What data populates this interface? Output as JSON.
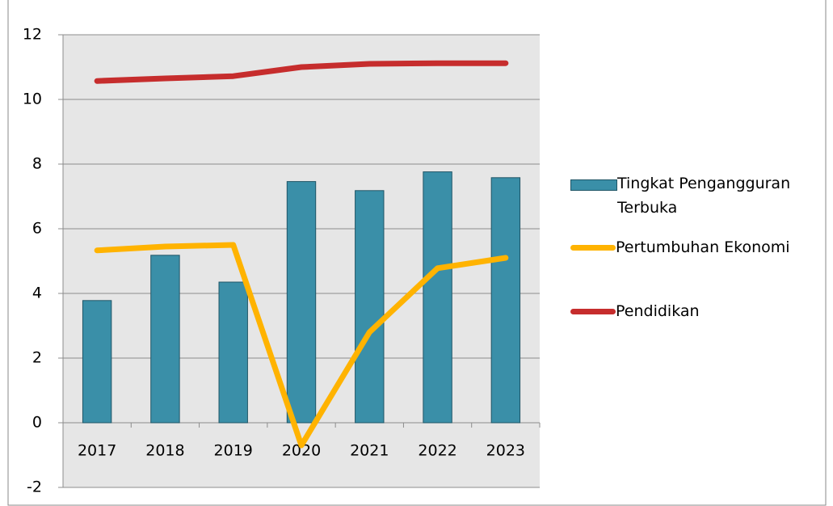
{
  "chart_data": {
    "type": "bar",
    "categories": [
      "2017",
      "2018",
      "2019",
      "2020",
      "2021",
      "2022",
      "2023"
    ],
    "series": [
      {
        "name": "Tingkat Pengangguran Terbuka",
        "type": "bar",
        "color": "#3a8fa8",
        "values": [
          3.78,
          5.18,
          4.35,
          7.46,
          7.18,
          7.76,
          7.58
        ]
      },
      {
        "name": "Pertumbuhan Ekonomi",
        "type": "line",
        "color": "#ffb300",
        "values": [
          5.33,
          5.45,
          5.5,
          -0.7,
          2.8,
          4.78,
          5.1
        ]
      },
      {
        "name": "Pendidikan",
        "type": "line",
        "color": "#c62d2d",
        "values": [
          10.57,
          10.65,
          10.72,
          11.0,
          11.1,
          11.12,
          11.12
        ]
      }
    ],
    "ylim": [
      -2,
      12
    ],
    "yticks": [
      -2,
      0,
      2,
      4,
      6,
      8,
      10,
      12
    ],
    "grid": true
  }
}
